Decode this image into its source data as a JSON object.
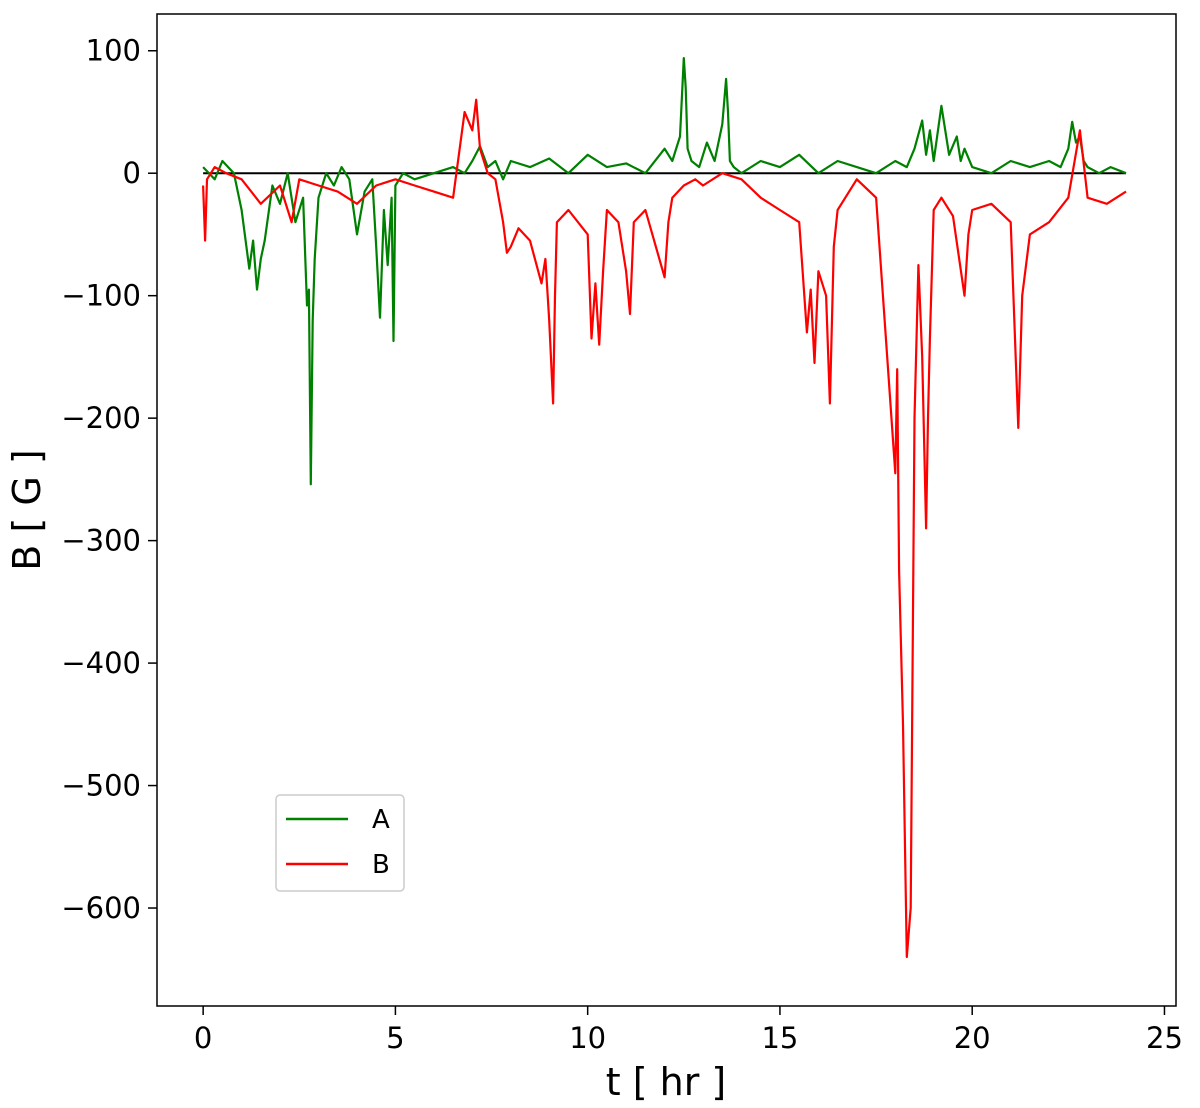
{
  "chart_data": {
    "type": "line",
    "title": "",
    "xlabel": "t [ hr ]",
    "ylabel": "B [ G ]",
    "xlim": [
      -1.2,
      25.3
    ],
    "ylim": [
      -680,
      130
    ],
    "xticks": [
      0,
      5,
      10,
      15,
      20,
      25
    ],
    "yticks": [
      100,
      0,
      -100,
      -200,
      -300,
      -400,
      -500,
      -600
    ],
    "grid": false,
    "legend_position": "lower-left",
    "zero_line": {
      "y": 0,
      "x_range": [
        0,
        24
      ],
      "color": "#000000"
    },
    "series": [
      {
        "name": "A",
        "color": "#008000",
        "x": [
          0,
          0.3,
          0.5,
          0.8,
          1.0,
          1.2,
          1.3,
          1.4,
          1.5,
          1.6,
          1.8,
          2.0,
          2.2,
          2.4,
          2.6,
          2.7,
          2.75,
          2.8,
          2.85,
          2.9,
          3.0,
          3.2,
          3.4,
          3.6,
          3.8,
          4.0,
          4.2,
          4.4,
          4.5,
          4.6,
          4.7,
          4.8,
          4.9,
          4.95,
          5.0,
          5.2,
          5.5,
          6.0,
          6.5,
          6.8,
          7.0,
          7.2,
          7.4,
          7.6,
          7.8,
          8.0,
          8.5,
          9.0,
          9.5,
          10.0,
          10.5,
          11.0,
          11.5,
          12.0,
          12.2,
          12.4,
          12.5,
          12.55,
          12.6,
          12.7,
          12.9,
          13.1,
          13.3,
          13.5,
          13.6,
          13.65,
          13.7,
          13.8,
          14.0,
          14.5,
          15.0,
          15.5,
          16.0,
          16.5,
          17.0,
          17.5,
          18.0,
          18.3,
          18.5,
          18.7,
          18.8,
          18.9,
          19.0,
          19.2,
          19.4,
          19.6,
          19.7,
          19.8,
          20.0,
          20.5,
          21.0,
          21.5,
          22.0,
          22.3,
          22.5,
          22.6,
          22.7,
          22.8,
          22.9,
          23.0,
          23.3,
          23.6,
          24.0
        ],
        "y": [
          5,
          -5,
          10,
          0,
          -30,
          -78,
          -55,
          -95,
          -70,
          -55,
          -10,
          -25,
          0,
          -40,
          -20,
          -108,
          -95,
          -254,
          -120,
          -70,
          -20,
          0,
          -10,
          5,
          -5,
          -50,
          -15,
          -5,
          -60,
          -118,
          -30,
          -75,
          -20,
          -137,
          -10,
          0,
          -5,
          0,
          5,
          0,
          10,
          22,
          5,
          10,
          -5,
          10,
          5,
          12,
          0,
          15,
          5,
          8,
          0,
          20,
          10,
          30,
          94,
          70,
          20,
          10,
          5,
          25,
          10,
          40,
          77,
          50,
          10,
          5,
          0,
          10,
          5,
          15,
          0,
          10,
          5,
          0,
          10,
          5,
          20,
          43,
          15,
          35,
          10,
          55,
          15,
          30,
          10,
          20,
          5,
          0,
          10,
          5,
          10,
          5,
          20,
          42,
          25,
          30,
          10,
          5,
          0,
          5,
          0
        ]
      },
      {
        "name": "B",
        "color": "#ff0000",
        "x": [
          0,
          0.05,
          0.1,
          0.3,
          0.6,
          1.0,
          1.5,
          2.0,
          2.3,
          2.5,
          3.0,
          3.5,
          4.0,
          4.5,
          5.0,
          5.5,
          6.0,
          6.5,
          6.8,
          7.0,
          7.1,
          7.2,
          7.4,
          7.6,
          7.8,
          7.9,
          8.0,
          8.2,
          8.5,
          8.8,
          8.9,
          9.0,
          9.1,
          9.15,
          9.2,
          9.5,
          10.0,
          10.1,
          10.2,
          10.3,
          10.4,
          10.5,
          10.8,
          11.0,
          11.1,
          11.2,
          11.5,
          12.0,
          12.1,
          12.2,
          12.5,
          12.8,
          13.0,
          13.5,
          14.0,
          14.5,
          15.0,
          15.5,
          15.7,
          15.8,
          15.9,
          16.0,
          16.2,
          16.3,
          16.4,
          16.5,
          16.7,
          17.0,
          17.5,
          18.0,
          18.05,
          18.1,
          18.2,
          18.3,
          18.4,
          18.5,
          18.6,
          18.7,
          18.8,
          18.85,
          18.9,
          19.0,
          19.2,
          19.5,
          19.8,
          19.9,
          20.0,
          20.5,
          21.0,
          21.2,
          21.3,
          21.5,
          22.0,
          22.5,
          22.8,
          23.0,
          23.5,
          24.0
        ],
        "y": [
          -10,
          -55,
          -5,
          5,
          0,
          -5,
          -25,
          -10,
          -40,
          -5,
          -10,
          -15,
          -25,
          -10,
          -5,
          -10,
          -15,
          -20,
          50,
          35,
          60,
          20,
          0,
          -5,
          -40,
          -65,
          -60,
          -45,
          -55,
          -90,
          -70,
          -120,
          -188,
          -100,
          -40,
          -30,
          -50,
          -135,
          -90,
          -140,
          -80,
          -30,
          -40,
          -80,
          -115,
          -40,
          -30,
          -85,
          -40,
          -20,
          -10,
          -5,
          -10,
          0,
          -5,
          -20,
          -30,
          -40,
          -130,
          -95,
          -155,
          -80,
          -100,
          -188,
          -60,
          -30,
          -20,
          -5,
          -20,
          -245,
          -160,
          -325,
          -450,
          -640,
          -600,
          -200,
          -75,
          -150,
          -290,
          -200,
          -135,
          -30,
          -20,
          -35,
          -100,
          -50,
          -30,
          -25,
          -40,
          -208,
          -100,
          -50,
          -40,
          -20,
          35,
          -20,
          -25,
          -15
        ]
      }
    ]
  }
}
